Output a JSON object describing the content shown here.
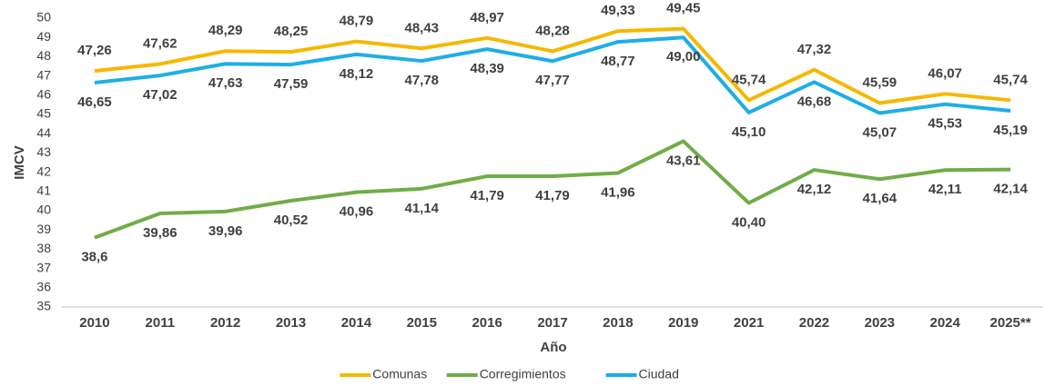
{
  "chart_data": {
    "type": "line",
    "y_label": "IMCV",
    "x_label": "Año",
    "categories": [
      "2010",
      "2011",
      "2012",
      "2013",
      "2014",
      "2015",
      "2016",
      "2017",
      "2018",
      "2019",
      "2021",
      "2022",
      "2023",
      "2024",
      "2025**"
    ],
    "series": [
      {
        "name": "Comunas",
        "color": "#f5b800",
        "values": [
          47.26,
          47.62,
          48.29,
          48.25,
          48.79,
          48.43,
          48.97,
          48.28,
          49.33,
          49.45,
          45.74,
          47.32,
          45.59,
          46.07,
          45.74
        ],
        "value_labels": [
          "47,26",
          "47,62",
          "48,29",
          "48,25",
          "48,79",
          "48,43",
          "48,97",
          "48,28",
          "49,33",
          "49,45",
          "45,74",
          "47,32",
          "45,59",
          "46,07",
          "45,74"
        ]
      },
      {
        "name": "Corregimientos",
        "color": "#70ad47",
        "values": [
          38.6,
          39.86,
          39.96,
          40.52,
          40.96,
          41.14,
          41.79,
          41.79,
          41.96,
          43.61,
          40.4,
          42.12,
          41.64,
          42.11,
          42.14
        ],
        "value_labels": [
          "38,6",
          "39,86",
          "39,96",
          "40,52",
          "40,96",
          "41,14",
          "41,79",
          "41,79",
          "41,96",
          "43,61",
          "40,40",
          "42,12",
          "41,64",
          "42,11",
          "42,14"
        ]
      },
      {
        "name": "Ciudad",
        "color": "#1eaee6",
        "values": [
          46.65,
          47.02,
          47.63,
          47.59,
          48.12,
          47.78,
          48.39,
          47.77,
          48.77,
          49.0,
          45.1,
          46.68,
          45.07,
          45.53,
          45.19
        ],
        "value_labels": [
          "46,65",
          "47,02",
          "47,63",
          "47,59",
          "48,12",
          "47,78",
          "48,39",
          "47,77",
          "48,77",
          "49,00",
          "45,10",
          "46,68",
          "45,07",
          "45,53",
          "45,19"
        ]
      }
    ],
    "ylim": [
      35,
      50
    ],
    "yticks": [
      35,
      36,
      37,
      38,
      39,
      40,
      41,
      42,
      43,
      44,
      45,
      46,
      47,
      48,
      49,
      50
    ],
    "grid": false,
    "legend": "bottom"
  }
}
